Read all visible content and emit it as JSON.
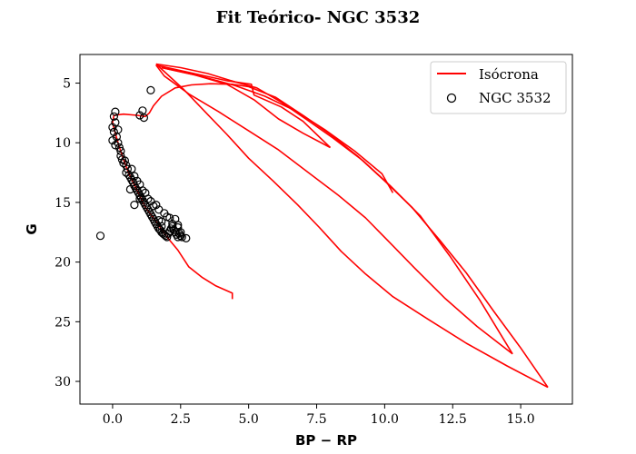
{
  "chart_data": {
    "type": "scatter",
    "title": "Fit Teórico- NGC 3532",
    "xlabel": "BP − RP",
    "ylabel": "G",
    "xlim": [
      -1.2,
      16.9
    ],
    "ylim": [
      31.9,
      2.6
    ],
    "y_inverted": true,
    "xticks": [
      0.0,
      2.5,
      5.0,
      7.5,
      10.0,
      12.5,
      15.0
    ],
    "xtick_labels": [
      "0.0",
      "2.5",
      "5.0",
      "7.5",
      "10.0",
      "12.5",
      "15.0"
    ],
    "yticks": [
      5,
      10,
      15,
      20,
      25,
      30
    ],
    "ytick_labels": [
      "5",
      "10",
      "15",
      "20",
      "25",
      "30"
    ],
    "grid": false,
    "legend_position": "top-right",
    "legend": [
      "Isócrona",
      "NGC 3532"
    ],
    "series": [
      {
        "name": "Isócrona",
        "kind": "line",
        "color": "#ff0000",
        "segments": [
          [
            [
              4.4,
              23.1
            ],
            [
              4.4,
              22.6
            ],
            [
              3.8,
              22.0
            ],
            [
              3.3,
              21.3
            ],
            [
              2.8,
              20.4
            ],
            [
              2.4,
              19.0
            ],
            [
              2.0,
              17.9
            ],
            [
              1.6,
              16.6
            ],
            [
              1.2,
              15.4
            ],
            [
              0.9,
              14.0
            ],
            [
              0.6,
              12.6
            ],
            [
              0.4,
              11.4
            ],
            [
              0.2,
              10.0
            ],
            [
              0.05,
              8.8
            ],
            [
              0.0,
              8.3
            ],
            [
              0.05,
              7.7
            ],
            [
              0.4,
              7.6
            ],
            [
              0.9,
              7.7
            ],
            [
              1.2,
              7.8
            ],
            [
              1.35,
              7.5
            ],
            [
              1.5,
              6.9
            ],
            [
              1.8,
              6.1
            ],
            [
              2.3,
              5.4
            ],
            [
              2.9,
              5.15
            ],
            [
              3.6,
              5.05
            ],
            [
              4.4,
              5.1
            ],
            [
              5.0,
              5.3
            ],
            [
              6.0,
              6.2
            ],
            [
              7.0,
              7.7
            ],
            [
              8.0,
              9.3
            ],
            [
              9.0,
              11.1
            ],
            [
              10.0,
              13.2
            ],
            [
              11.0,
              15.4
            ],
            [
              12.0,
              18.1
            ],
            [
              13.0,
              20.9
            ],
            [
              14.0,
              24.1
            ],
            [
              15.0,
              27.2
            ],
            [
              16.0,
              30.5
            ]
          ],
          [
            [
              16.0,
              30.5
            ],
            [
              14.5,
              28.7
            ],
            [
              13.0,
              26.8
            ],
            [
              11.6,
              24.8
            ],
            [
              10.3,
              22.9
            ],
            [
              9.3,
              21.0
            ],
            [
              8.4,
              19.1
            ],
            [
              7.6,
              17.1
            ],
            [
              6.8,
              15.2
            ],
            [
              5.9,
              13.2
            ],
            [
              5.0,
              11.3
            ],
            [
              4.2,
              9.3
            ],
            [
              3.4,
              7.4
            ],
            [
              2.6,
              5.5
            ],
            [
              1.6,
              3.4
            ]
          ],
          [
            [
              1.6,
              3.4
            ],
            [
              2.5,
              3.7
            ],
            [
              3.5,
              4.2
            ],
            [
              4.5,
              4.9
            ],
            [
              5.3,
              5.4
            ],
            [
              6.2,
              6.6
            ],
            [
              7.1,
              8.0
            ],
            [
              8.1,
              9.6
            ],
            [
              9.2,
              11.5
            ],
            [
              10.2,
              13.6
            ],
            [
              11.3,
              16.1
            ],
            [
              12.4,
              19.5
            ],
            [
              13.5,
              23.2
            ],
            [
              14.7,
              27.7
            ]
          ],
          [
            [
              14.7,
              27.7
            ],
            [
              13.4,
              25.4
            ],
            [
              12.2,
              23.0
            ],
            [
              11.1,
              20.5
            ],
            [
              10.2,
              18.4
            ],
            [
              9.3,
              16.3
            ],
            [
              8.3,
              14.4
            ],
            [
              7.2,
              12.5
            ],
            [
              6.1,
              10.6
            ],
            [
              5.0,
              9.0
            ],
            [
              3.9,
              7.4
            ],
            [
              2.8,
              5.9
            ],
            [
              1.9,
              4.4
            ],
            [
              1.6,
              3.5
            ]
          ],
          [
            [
              1.6,
              3.5
            ],
            [
              3.0,
              4.2
            ],
            [
              4.2,
              4.8
            ],
            [
              5.1,
              5.1
            ],
            [
              5.2,
              6.0
            ],
            [
              6.2,
              7.0
            ],
            [
              7.0,
              8.2
            ],
            [
              8.0,
              10.4
            ]
          ],
          [
            [
              8.0,
              10.4
            ],
            [
              7.0,
              9.2
            ],
            [
              6.1,
              8.0
            ],
            [
              5.2,
              6.4
            ],
            [
              4.2,
              5.1
            ],
            [
              3.0,
              4.3
            ],
            [
              1.8,
              3.7
            ]
          ],
          [
            [
              1.8,
              3.7
            ],
            [
              3.2,
              4.4
            ],
            [
              4.5,
              5.2
            ],
            [
              5.6,
              6.1
            ],
            [
              6.7,
              7.3
            ],
            [
              7.8,
              8.9
            ],
            [
              8.9,
              10.7
            ],
            [
              9.9,
              12.6
            ],
            [
              10.3,
              14.2
            ]
          ]
        ]
      },
      {
        "name": "NGC 3532",
        "kind": "scatter",
        "marker": "open-circle",
        "color": "#000000",
        "x": [
          0.1,
          0.05,
          0.1,
          0.0,
          0.05,
          0.2,
          0.15,
          0.0,
          0.1,
          0.2,
          0.25,
          0.3,
          0.3,
          0.35,
          0.4,
          0.45,
          0.5,
          0.55,
          0.5,
          0.6,
          0.65,
          0.7,
          0.75,
          0.8,
          0.85,
          0.9,
          0.95,
          1.0,
          1.05,
          1.1,
          1.15,
          1.2,
          1.25,
          1.3,
          1.35,
          1.4,
          1.45,
          1.5,
          1.55,
          1.6,
          1.65,
          1.7,
          1.75,
          1.8,
          1.85,
          1.9,
          1.95,
          2.0,
          2.05,
          2.1,
          2.15,
          2.2,
          2.25,
          2.3,
          2.35,
          2.4,
          2.45,
          2.5,
          2.55,
          2.7,
          2.2,
          2.3,
          2.4,
          1.9,
          2.0,
          1.6,
          1.7,
          1.8,
          1.2,
          1.3,
          0.7,
          0.8,
          1.0,
          1.1,
          0.9,
          1.4,
          1.5,
          1.7,
          1.8,
          2.1,
          2.4,
          2.5,
          0.65,
          0.8,
          1.0,
          1.0,
          1.1,
          1.15,
          1.4,
          -0.45
        ],
        "y": [
          7.4,
          7.8,
          8.3,
          8.7,
          9.1,
          8.9,
          9.5,
          9.8,
          10.2,
          10.0,
          10.4,
          10.7,
          11.1,
          11.4,
          11.7,
          11.5,
          11.9,
          12.2,
          12.5,
          12.7,
          12.9,
          13.1,
          13.3,
          13.6,
          13.8,
          14.0,
          14.2,
          14.4,
          14.6,
          14.8,
          15.0,
          15.2,
          15.4,
          15.6,
          15.8,
          16.0,
          16.2,
          16.4,
          16.6,
          16.8,
          17.0,
          17.2,
          17.3,
          17.5,
          17.6,
          17.7,
          17.8,
          17.9,
          17.6,
          17.4,
          17.2,
          17.0,
          17.3,
          17.5,
          17.7,
          17.9,
          17.6,
          17.8,
          17.9,
          18.0,
          16.8,
          16.4,
          16.9,
          15.9,
          16.2,
          15.2,
          15.6,
          16.6,
          14.2,
          14.7,
          12.2,
          12.8,
          13.5,
          14.0,
          13.2,
          14.9,
          15.3,
          16.5,
          17.0,
          16.3,
          17.1,
          17.5,
          13.9,
          15.2,
          14.7,
          7.7,
          7.3,
          7.9,
          5.6,
          17.8
        ]
      }
    ]
  }
}
